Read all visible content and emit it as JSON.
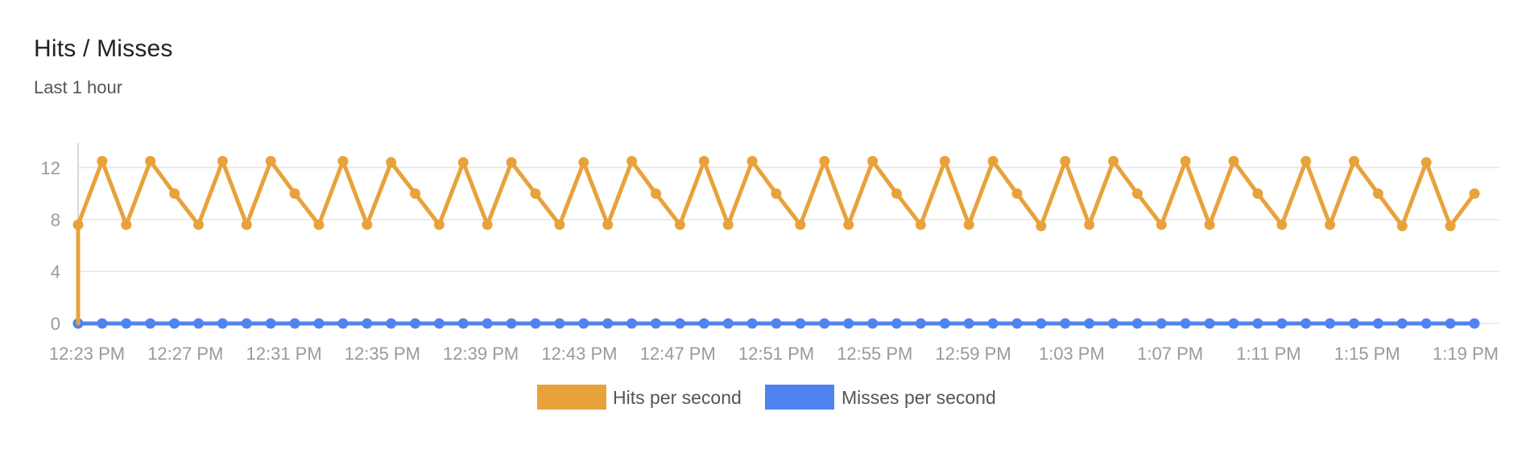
{
  "panel": {
    "title": "Hits / Misses",
    "subtitle": "Last 1 hour"
  },
  "colors": {
    "hits": "#E8A23C",
    "misses": "#4F84F0",
    "grid": "#e6e6e6",
    "axis": "#cccccc",
    "tick_text": "#9a9a9a"
  },
  "chart_data": {
    "type": "line",
    "title": "Hits / Misses",
    "subtitle": "Last 1 hour",
    "xlabel": "",
    "ylabel": "",
    "ylim": [
      0,
      14
    ],
    "yticks": [
      0,
      4,
      8,
      12
    ],
    "x_tick_labels": [
      "12:23 PM",
      "12:27 PM",
      "12:31 PM",
      "12:35 PM",
      "12:39 PM",
      "12:43 PM",
      "12:47 PM",
      "12:51 PM",
      "12:55 PM",
      "12:59 PM",
      "1:03 PM",
      "1:07 PM",
      "1:11 PM",
      "1:15 PM",
      "1:19 PM"
    ],
    "grid": true,
    "legend_position": "bottom",
    "series": [
      {
        "name": "Hits per second",
        "color": "#E8A23C",
        "values": [
          0,
          7.6,
          12.5,
          7.6,
          12.5,
          10,
          7.6,
          12.5,
          7.6,
          12.5,
          10,
          7.6,
          12.5,
          7.6,
          12.4,
          10,
          7.6,
          12.4,
          7.6,
          12.4,
          10,
          7.6,
          12.4,
          7.6,
          12.5,
          10,
          7.6,
          12.5,
          7.6,
          12.5,
          10,
          7.6,
          12.5,
          7.6,
          12.5,
          10,
          7.6,
          12.5,
          7.6,
          12.5,
          10,
          7.5,
          12.5,
          7.6,
          12.5,
          10,
          7.6,
          12.5,
          7.6,
          12.5,
          10,
          7.6,
          12.5,
          7.6,
          12.5,
          10,
          7.5,
          12.4,
          7.5,
          10
        ]
      },
      {
        "name": "Misses per second",
        "color": "#4F84F0",
        "values": [
          0,
          0,
          0,
          0,
          0,
          0,
          0,
          0,
          0,
          0,
          0,
          0,
          0,
          0,
          0,
          0,
          0,
          0,
          0,
          0,
          0,
          0,
          0,
          0,
          0,
          0,
          0,
          0,
          0,
          0,
          0,
          0,
          0,
          0,
          0,
          0,
          0,
          0,
          0,
          0,
          0,
          0,
          0,
          0,
          0,
          0,
          0,
          0,
          0,
          0,
          0,
          0,
          0,
          0,
          0,
          0,
          0,
          0,
          0,
          0
        ]
      }
    ]
  }
}
